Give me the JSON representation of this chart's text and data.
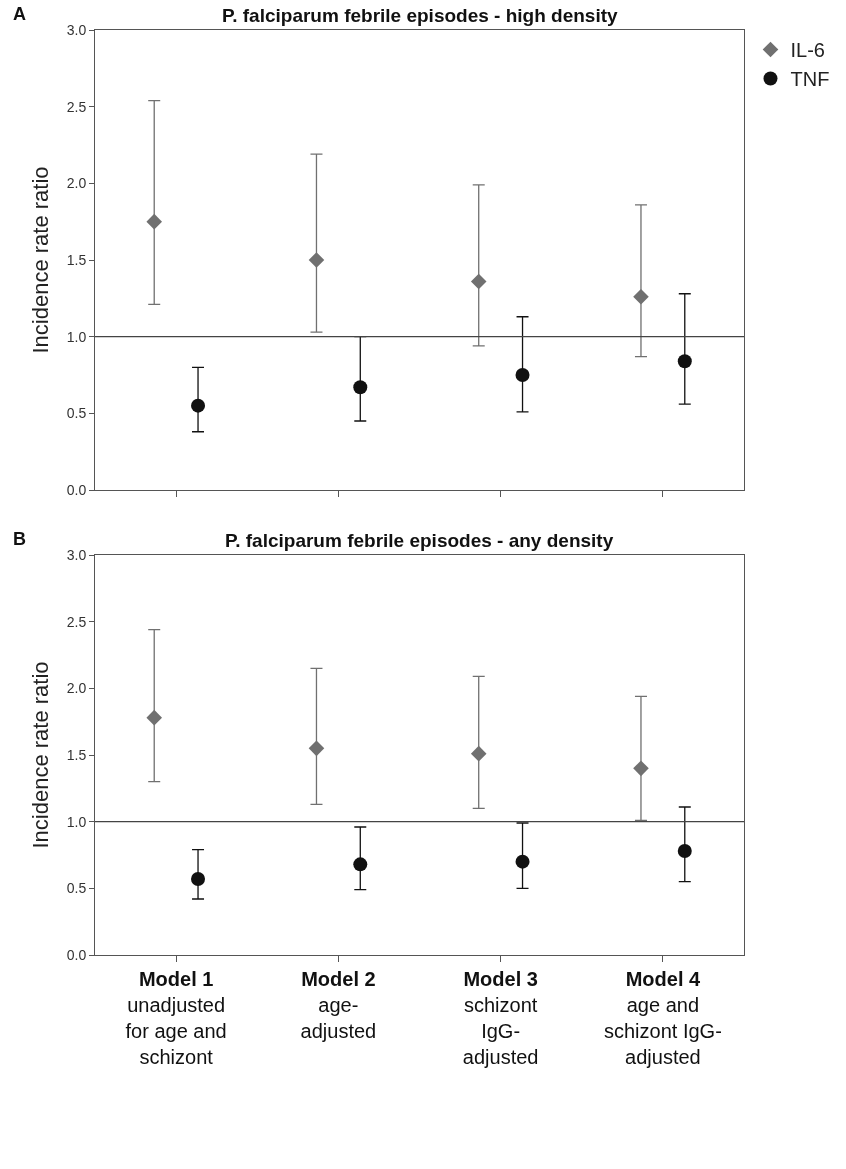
{
  "chart_data": [
    {
      "type": "scatter",
      "title": "P. falciparum febrile episodes - high density",
      "ylabel": "Incidence rate ratio",
      "annotations": [
        "A"
      ],
      "categories": [
        null,
        null,
        null,
        null
      ],
      "series": [
        {
          "name": "IL-6",
          "color": "#707070",
          "marker": "diamond",
          "values": [
            1.75,
            1.5,
            1.36,
            1.26
          ],
          "errors": [
            [
              1.21,
              2.54
            ],
            [
              1.03,
              2.19
            ],
            [
              0.94,
              1.99
            ],
            [
              0.87,
              1.86
            ]
          ]
        },
        {
          "name": "TNF",
          "color": "#111111",
          "marker": "circle",
          "values": [
            0.55,
            0.67,
            0.75,
            0.84
          ],
          "errors": [
            [
              0.38,
              0.8
            ],
            [
              0.45,
              1.0
            ],
            [
              0.51,
              1.13
            ],
            [
              0.56,
              1.28
            ]
          ]
        }
      ],
      "ylim": [
        0,
        3
      ],
      "yticks": [
        {
          "value": 0,
          "label": "0.0"
        },
        {
          "value": 0.5,
          "label": "0.5"
        },
        {
          "value": 1,
          "label": "1.0"
        },
        {
          "value": 1.5,
          "label": "1.5"
        },
        {
          "value": 2,
          "label": "2.0"
        },
        {
          "value": 2.5,
          "label": "2.5"
        },
        {
          "value": 3,
          "label": "3.0"
        }
      ],
      "ref_lines": [
        {
          "axis": "y",
          "value": 1,
          "color": "#444444"
        }
      ],
      "legend": "top right",
      "tick_labels": "y"
    },
    {
      "type": "scatter",
      "title": "P. falciparum febrile episodes - any density",
      "ylabel": "Incidence rate ratio",
      "annotations": [
        "B"
      ],
      "categories": [
        "Model 1\nunadjusted\nfor age and\nschizont",
        "Model 2\nage-\nadjusted",
        "Model 3\nschizont\nIgG-\nadjusted",
        "Model 4\nage and\nschizont IgG-\nadjusted"
      ],
      "series": [
        {
          "color": "#707070",
          "marker": "diamond",
          "values": [
            1.78,
            1.55,
            1.51,
            1.4
          ],
          "errors": [
            [
              1.3,
              2.44
            ],
            [
              1.13,
              2.15
            ],
            [
              1.1,
              2.09
            ],
            [
              1.01,
              1.94
            ]
          ]
        },
        {
          "color": "#111111",
          "marker": "circle",
          "values": [
            0.57,
            0.68,
            0.7,
            0.78
          ],
          "errors": [
            [
              0.42,
              0.79
            ],
            [
              0.49,
              0.96
            ],
            [
              0.5,
              0.99
            ],
            [
              0.55,
              1.11
            ]
          ]
        }
      ],
      "ylim": [
        0,
        3
      ],
      "yticks": [
        {
          "value": 0,
          "label": "0.0"
        },
        {
          "value": 0.5,
          "label": "0.5"
        },
        {
          "value": 1,
          "label": "1.0"
        },
        {
          "value": 1.5,
          "label": "1.5"
        },
        {
          "value": 2,
          "label": "2.0"
        },
        {
          "value": 2.5,
          "label": "2.5"
        },
        {
          "value": 3,
          "label": "3.0"
        }
      ],
      "ref_lines": [
        {
          "axis": "y",
          "value": 1,
          "color": "#444444"
        }
      ],
      "legend": false
    }
  ]
}
